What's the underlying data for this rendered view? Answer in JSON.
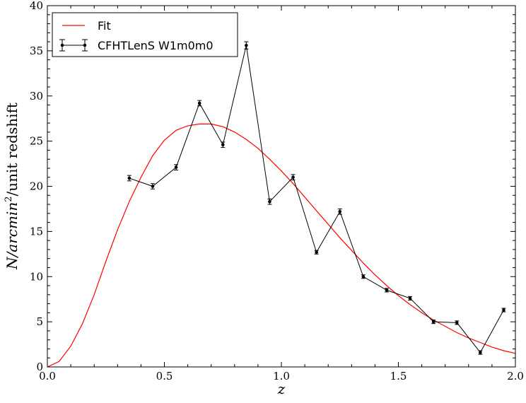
{
  "chart_data": {
    "type": "line",
    "xlabel": "z",
    "ylabel": {
      "main": "N/arcmin",
      "sup": "2",
      "tail": "/unit redshift"
    },
    "xlim": [
      0.0,
      2.0
    ],
    "ylim": [
      0,
      40
    ],
    "xticks": [
      0.0,
      0.5,
      1.0,
      1.5,
      2.0
    ],
    "xtick_labels": [
      "0.0",
      "0.5",
      "1.0",
      "1.5",
      "2.0"
    ],
    "yticks": [
      0,
      5,
      10,
      15,
      20,
      25,
      30,
      35,
      40
    ],
    "ytick_labels": [
      "0",
      "5",
      "10",
      "15",
      "20",
      "25",
      "30",
      "35",
      "40"
    ],
    "grid": false,
    "legend_position": "top-left",
    "legend": [
      {
        "label": "Fit",
        "color": "#ff0000",
        "style": "line"
      },
      {
        "label": "CFHTLenS W1m0m0",
        "color": "#000000",
        "style": "errorbar"
      }
    ],
    "series": [
      {
        "name": "Fit",
        "color": "#ff0000",
        "kind": "curve",
        "x": [
          0.0,
          0.05,
          0.1,
          0.15,
          0.2,
          0.25,
          0.3,
          0.35,
          0.4,
          0.45,
          0.5,
          0.55,
          0.6,
          0.65,
          0.7,
          0.75,
          0.8,
          0.85,
          0.9,
          0.95,
          1.0,
          1.05,
          1.1,
          1.15,
          1.2,
          1.25,
          1.3,
          1.35,
          1.4,
          1.45,
          1.5,
          1.55,
          1.6,
          1.65,
          1.7,
          1.75,
          1.8,
          1.85,
          1.9,
          1.95,
          2.0
        ],
        "y": [
          0.0,
          0.6,
          2.3,
          4.8,
          8.0,
          11.7,
          15.2,
          18.3,
          21.0,
          23.4,
          25.1,
          26.2,
          26.7,
          26.9,
          26.9,
          26.6,
          26.0,
          25.2,
          24.2,
          23.0,
          21.7,
          20.3,
          18.8,
          17.3,
          15.8,
          14.3,
          12.9,
          11.5,
          10.2,
          9.0,
          7.9,
          6.9,
          6.0,
          5.2,
          4.5,
          3.8,
          3.2,
          2.7,
          2.2,
          1.8,
          1.5
        ]
      },
      {
        "name": "CFHTLenS W1m0m0",
        "color": "#000000",
        "kind": "errorbar",
        "x": [
          0.35,
          0.45,
          0.55,
          0.65,
          0.75,
          0.85,
          0.95,
          1.05,
          1.15,
          1.25,
          1.35,
          1.45,
          1.55,
          1.65,
          1.75,
          1.85,
          1.95
        ],
        "y": [
          20.9,
          20.0,
          22.1,
          29.2,
          24.6,
          35.6,
          18.3,
          21.0,
          12.7,
          17.2,
          10.0,
          8.5,
          7.6,
          5.0,
          4.9,
          1.6,
          6.3
        ],
        "yerr": [
          0.3,
          0.3,
          0.3,
          0.3,
          0.3,
          0.4,
          0.3,
          0.3,
          0.2,
          0.3,
          0.2,
          0.2,
          0.2,
          0.2,
          0.2,
          0.2,
          0.2
        ]
      }
    ]
  }
}
